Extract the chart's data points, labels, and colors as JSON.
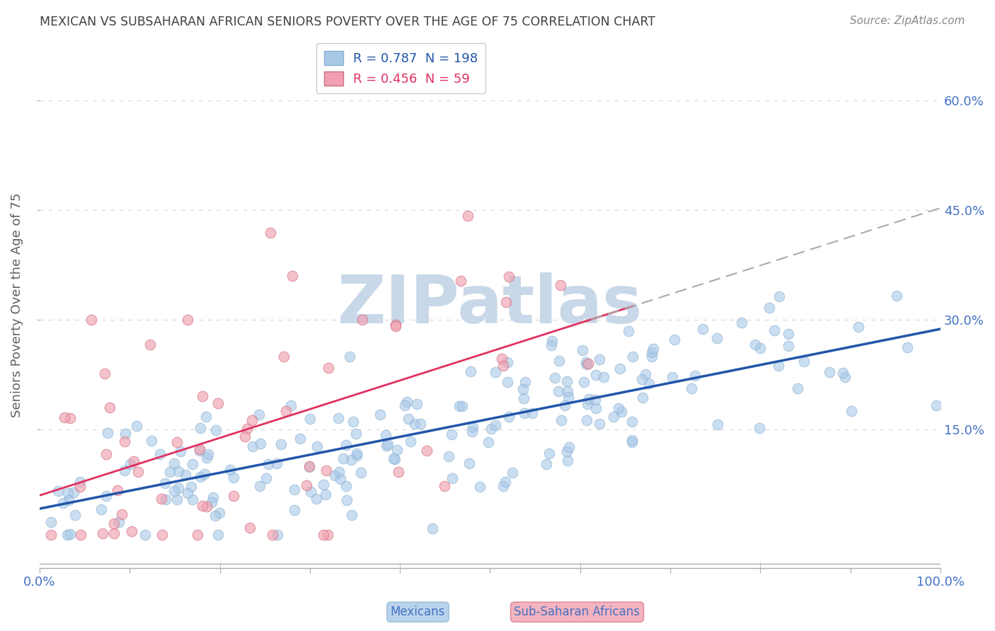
{
  "title": "MEXICAN VS SUBSAHARAN AFRICAN SENIORS POVERTY OVER THE AGE OF 75 CORRELATION CHART",
  "source": "Source: ZipAtlas.com",
  "ylabel": "Seniors Poverty Over the Age of 75",
  "xlim": [
    0.0,
    1.0
  ],
  "ylim": [
    -0.04,
    0.68
  ],
  "xticks": [
    0.0,
    0.1,
    0.2,
    0.3,
    0.4,
    0.5,
    0.6,
    0.7,
    0.8,
    0.9,
    1.0
  ],
  "xticklabels": [
    "0.0%",
    "",
    "",
    "",
    "",
    "",
    "",
    "",
    "",
    "",
    "100.0%"
  ],
  "yticks": [
    0.15,
    0.3,
    0.45,
    0.6
  ],
  "yticklabels": [
    "15.0%",
    "30.0%",
    "45.0%",
    "60.0%"
  ],
  "mexican_color": "#a8c8e8",
  "african_color": "#f0a0b0",
  "mexican_R": 0.787,
  "mexican_N": 198,
  "african_R": 0.456,
  "african_N": 59,
  "legend_label_1": "Mexicans",
  "legend_label_2": "Sub-Saharan Africans",
  "watermark": "ZIPatlas",
  "watermark_color": "#c8d8e8",
  "background_color": "#ffffff",
  "grid_color": "#d8d8d8",
  "title_color": "#404040",
  "axis_label_color": "#606060",
  "tick_label_color": "#4472c4",
  "mexican_line_color": "#2255aa",
  "african_line_color": "#e03060",
  "african_line_style": "-",
  "mexican_slope": 0.25,
  "mexican_intercept": 0.04,
  "african_slope": 0.38,
  "african_intercept": 0.06
}
